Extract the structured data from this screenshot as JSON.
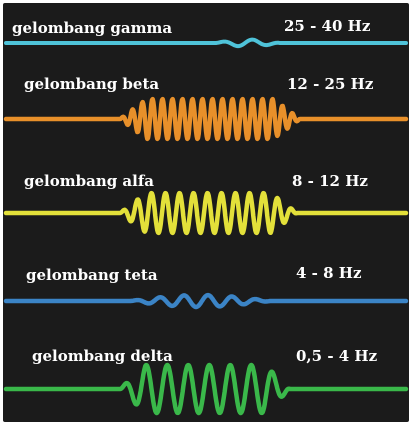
{
  "waves": [
    {
      "name": "gelombang gamma",
      "range": "25 - 40 Hz",
      "color": "#4fc3d9"
    },
    {
      "name": "gelombang beta",
      "range": "12 - 25 Hz",
      "color": "#e8902a"
    },
    {
      "name": "gelombang alfa",
      "range": "8 - 12 Hz",
      "color": "#e3e03a"
    },
    {
      "name": "gelombang teta",
      "range": "4 - 8 Hz",
      "color": "#3b84c6"
    },
    {
      "name": "gelombang delta",
      "range": "0,5 - 4 Hz",
      "color": "#3ab84a"
    }
  ]
}
